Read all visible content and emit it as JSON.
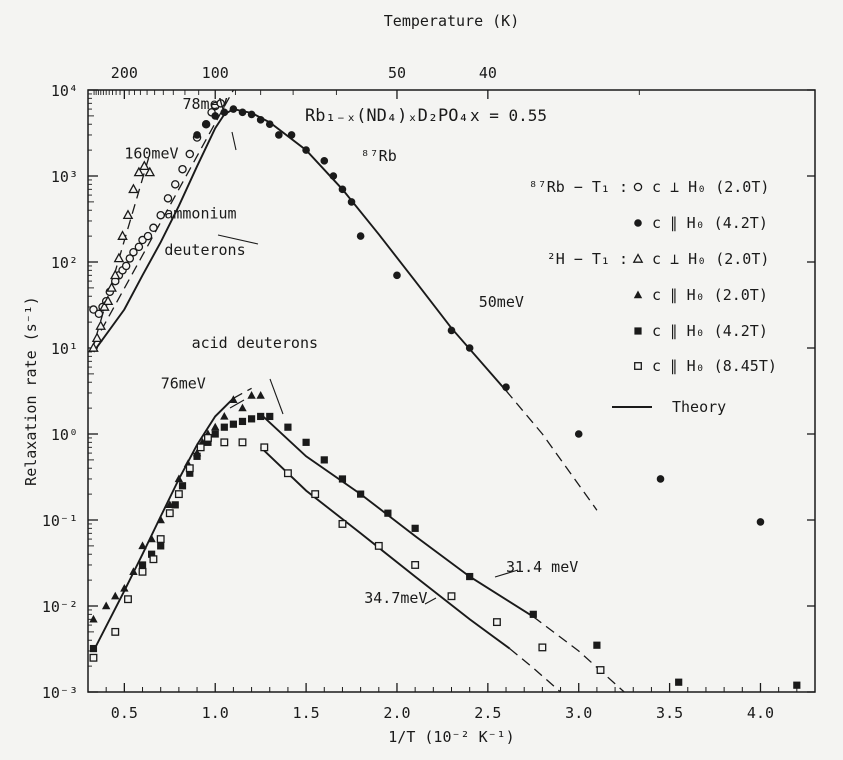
{
  "chart_data": {
    "type": "scatter",
    "title": "",
    "compound_label": "Rb₁₋ₓ(ND₄)ₓD₂PO₄",
    "x_value_label": "x = 0.55",
    "xlabel": "1/T (10⁻² K⁻¹)",
    "ylabel": "Relaxation rate  (s⁻¹)",
    "top_axis_label": "Temperature (K)",
    "xlim": [
      0.3,
      4.3
    ],
    "ylim": [
      0.001,
      10000
    ],
    "y_scale": "log",
    "grid": false,
    "legend_placement": "top-right",
    "x_ticks": [
      0.5,
      1.0,
      1.5,
      2.0,
      2.5,
      3.0,
      3.5,
      4.0
    ],
    "x_tick_labels": [
      "0.5",
      "1.0",
      "1.5",
      "2.0",
      "2.5",
      "3.0",
      "3.5",
      "4.0"
    ],
    "y_ticks": [
      0.001,
      0.01,
      0.1,
      1,
      10,
      100,
      1000,
      10000
    ],
    "y_tick_labels": [
      "10⁻³",
      "10⁻²",
      "10⁻¹",
      "10⁰",
      "10¹",
      "10²",
      "10³",
      "10⁴"
    ],
    "top_ticks": [
      200,
      100,
      50,
      40
    ],
    "top_tick_labels": [
      "200",
      "100",
      "50",
      "40"
    ],
    "legend": {
      "rb_group": "⁸⁷Rb − T₁ :",
      "h_group": "²H − T₁ :",
      "items": [
        {
          "marker": "open-circle",
          "label": "c ⊥ H₀ (2.0T)"
        },
        {
          "marker": "filled-circle",
          "label": "c ∥ H₀ (4.2T)"
        },
        {
          "marker": "open-triangle",
          "label": "c ⊥ H₀ (2.0T)"
        },
        {
          "marker": "filled-triangle",
          "label": "c ∥ H₀ (2.0T)"
        },
        {
          "marker": "filled-square",
          "label": "c ∥ H₀ (4.2T)"
        },
        {
          "marker": "open-square",
          "label": "c ∥ H₀ (8.45T)"
        }
      ],
      "theory_label": "Theory"
    },
    "annotations": [
      {
        "text": "160meV",
        "x": 0.5,
        "y": 1600
      },
      {
        "text": "78meV",
        "x": 0.82,
        "y": 6000
      },
      {
        "text": "ammonium",
        "x": 0.72,
        "y": 320
      },
      {
        "text": "deuterons",
        "x": 0.72,
        "y": 120
      },
      {
        "text": "⁸⁷Rb",
        "x": 1.8,
        "y": 1500
      },
      {
        "text": "50meV",
        "x": 2.45,
        "y": 30
      },
      {
        "text": "acid deuterons",
        "x": 0.87,
        "y": 10
      },
      {
        "text": "76meV",
        "x": 0.7,
        "y": 3.4
      },
      {
        "text": "31.4 meV",
        "x": 2.6,
        "y": 0.025
      },
      {
        "text": "34.7meV",
        "x": 1.82,
        "y": 0.0108
      }
    ],
    "series": [
      {
        "name": "⁸⁷Rb − T₁ : c ⊥ H₀ (2.0T)",
        "marker": "open-circle",
        "x": [
          0.33,
          0.36,
          0.38,
          0.4,
          0.42,
          0.45,
          0.47,
          0.49,
          0.51,
          0.53,
          0.55,
          0.58,
          0.6,
          0.63,
          0.66,
          0.7,
          0.74,
          0.78,
          0.82,
          0.86,
          0.9,
          0.95,
          0.98,
          1.0,
          1.03
        ],
        "y": [
          28,
          25,
          30,
          35,
          45,
          60,
          70,
          80,
          90,
          110,
          130,
          150,
          180,
          200,
          250,
          350,
          550,
          800,
          1200,
          1800,
          2800,
          4000,
          5500,
          6500,
          7000
        ]
      },
      {
        "name": "⁸⁷Rb − T₁ : c ∥ H₀ (4.2T)",
        "marker": "filled-circle",
        "x": [
          0.9,
          0.95,
          1.0,
          1.05,
          1.1,
          1.15,
          1.2,
          1.25,
          1.3,
          1.35,
          1.42,
          1.5,
          1.6,
          1.65,
          1.7,
          1.75,
          1.8,
          2.0,
          2.3,
          2.4,
          2.6,
          3.0,
          3.45,
          4.0
        ],
        "y": [
          3000,
          4000,
          5000,
          5500,
          6000,
          5500,
          5200,
          4500,
          4000,
          3000,
          3000,
          2000,
          1500,
          1000,
          700,
          500,
          200,
          70,
          16,
          10,
          3.5,
          1.0,
          0.3,
          0.095
        ]
      },
      {
        "name": "²H − T₁ : c ⊥ H₀ (2.0T)",
        "marker": "open-triangle",
        "x": [
          0.33,
          0.35,
          0.37,
          0.39,
          0.41,
          0.43,
          0.45,
          0.47,
          0.49,
          0.52,
          0.55,
          0.58,
          0.61,
          0.64
        ],
        "y": [
          10,
          13,
          18,
          30,
          35,
          50,
          70,
          110,
          200,
          350,
          700,
          1100,
          1300,
          1100
        ]
      },
      {
        "name": "²H − T₁ : c ∥ H₀ (2.0T)",
        "marker": "filled-triangle",
        "x": [
          0.33,
          0.4,
          0.45,
          0.5,
          0.55,
          0.6,
          0.65,
          0.7,
          0.75,
          0.8,
          0.85,
          0.9,
          0.93,
          0.96,
          1.0,
          1.05,
          1.1,
          1.15,
          1.2,
          1.25
        ],
        "y": [
          0.007,
          0.01,
          0.013,
          0.016,
          0.025,
          0.05,
          0.06,
          0.1,
          0.15,
          0.3,
          0.45,
          0.6,
          0.8,
          1.0,
          1.2,
          1.6,
          2.5,
          2.0,
          2.8,
          2.8
        ]
      },
      {
        "name": "²H − T₁ : c ∥ H₀ (4.2T)",
        "marker": "filled-square",
        "x": [
          0.33,
          0.6,
          0.65,
          0.7,
          0.78,
          0.82,
          0.86,
          0.9,
          0.96,
          1.0,
          1.05,
          1.1,
          1.15,
          1.2,
          1.25,
          1.3,
          1.4,
          1.5,
          1.6,
          1.7,
          1.8,
          1.95,
          2.1,
          2.4,
          2.75,
          3.1,
          3.55,
          4.2
        ],
        "y": [
          0.0032,
          0.03,
          0.04,
          0.05,
          0.15,
          0.25,
          0.35,
          0.55,
          0.8,
          1.0,
          1.2,
          1.3,
          1.4,
          1.5,
          1.6,
          1.6,
          1.2,
          0.8,
          0.5,
          0.3,
          0.2,
          0.12,
          0.08,
          0.022,
          0.008,
          0.0035,
          0.0013,
          0.0012
        ]
      },
      {
        "name": "²H − T₁ : c ∥ H₀ (8.45T)",
        "marker": "open-square",
        "x": [
          0.33,
          0.45,
          0.52,
          0.6,
          0.66,
          0.7,
          0.75,
          0.8,
          0.86,
          0.92,
          0.96,
          1.05,
          1.15,
          1.27,
          1.4,
          1.55,
          1.7,
          1.9,
          2.1,
          2.3,
          2.55,
          2.8,
          3.12
        ],
        "y": [
          0.0025,
          0.005,
          0.012,
          0.025,
          0.035,
          0.06,
          0.12,
          0.2,
          0.4,
          0.7,
          0.9,
          0.8,
          0.8,
          0.7,
          0.35,
          0.2,
          0.09,
          0.05,
          0.03,
          0.013,
          0.0065,
          0.0033,
          0.0018
        ]
      }
    ],
    "theory_curves": [
      {
        "name": "⁸⁷Rb theory",
        "style": "solid",
        "x": [
          0.33,
          0.5,
          0.6,
          0.7,
          0.8,
          0.9,
          1.0,
          1.05,
          1.1,
          1.2,
          1.3,
          1.5,
          1.7,
          1.9,
          2.1,
          2.3,
          2.6
        ],
        "y": [
          9,
          28,
          70,
          170,
          450,
          1300,
          3600,
          5200,
          6000,
          5400,
          4200,
          2000,
          700,
          210,
          60,
          17,
          3.2
        ]
      },
      {
        "name": "⁸⁷Rb theory extension",
        "style": "dashed",
        "x": [
          2.6,
          2.8,
          3.1
        ],
        "y": [
          3.2,
          1.0,
          0.13
        ]
      },
      {
        "name": "160meV slope",
        "style": "dashed",
        "x": [
          0.32,
          0.64
        ],
        "y": [
          9,
          1800
        ]
      },
      {
        "name": "78meV slope",
        "style": "dashed",
        "x": [
          0.33,
          1.1
        ],
        "y": [
          11,
          10000
        ]
      },
      {
        "name": "76meV theory",
        "style": "solid",
        "x": [
          0.33,
          0.5,
          0.6,
          0.7,
          0.8,
          0.9,
          1.0,
          1.1
        ],
        "y": [
          0.003,
          0.015,
          0.04,
          0.11,
          0.3,
          0.75,
          1.6,
          2.6
        ]
      },
      {
        "name": "76meV extension",
        "style": "dashed",
        "x": [
          1.1,
          1.2
        ],
        "y": [
          2.6,
          3.4
        ]
      },
      {
        "name": "31.4meV theory",
        "style": "solid",
        "x": [
          1.25,
          1.5,
          1.8,
          2.1,
          2.4,
          2.75
        ],
        "y": [
          1.7,
          0.55,
          0.2,
          0.065,
          0.022,
          0.0075
        ]
      },
      {
        "name": "31.4meV extension",
        "style": "dashed",
        "x": [
          2.75,
          3.0,
          3.25
        ],
        "y": [
          0.0075,
          0.003,
          0.001
        ]
      },
      {
        "name": "34.7meV theory",
        "style": "solid",
        "x": [
          1.25,
          1.5,
          1.8,
          2.1,
          2.4,
          2.62
        ],
        "y": [
          0.7,
          0.22,
          0.07,
          0.022,
          0.007,
          0.0032
        ]
      },
      {
        "name": "34.7meV extension",
        "style": "dashed",
        "x": [
          2.62,
          2.75,
          2.9
        ],
        "y": [
          0.0032,
          0.0019,
          0.001
        ]
      }
    ]
  }
}
